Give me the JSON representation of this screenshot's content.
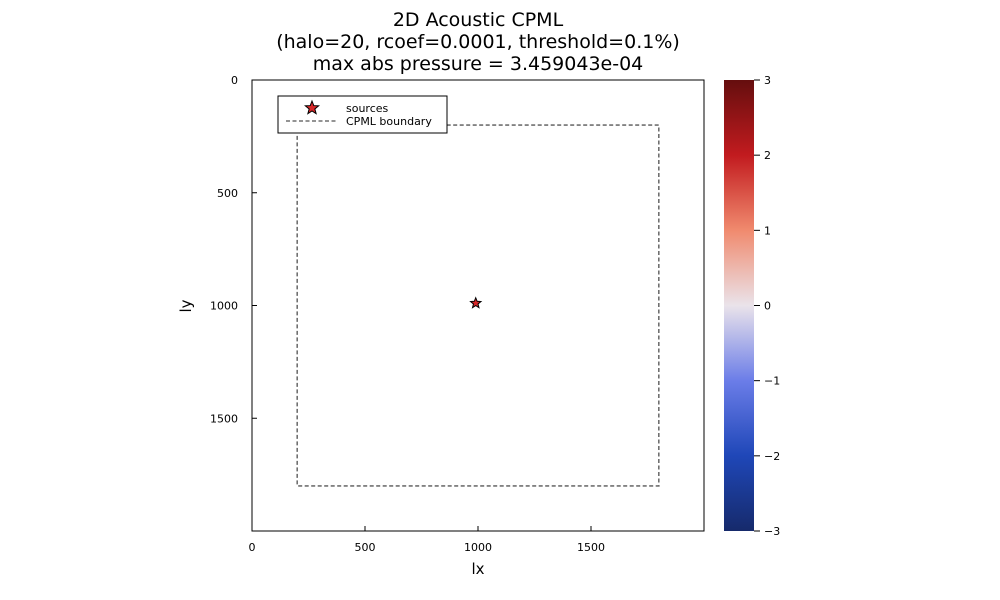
{
  "chart_data": {
    "type": "heatmap",
    "title_lines": [
      "2D Acoustic CPML",
      "(halo=20, rcoef=0.0001, threshold=0.1%)",
      "max abs pressure = 3.459043e-04"
    ],
    "xlabel": "lx",
    "ylabel": "ly",
    "xlim": [
      0,
      2000
    ],
    "ylim": [
      0,
      2000
    ],
    "y_inverted": true,
    "xticks": [
      0,
      500,
      1000,
      1500
    ],
    "xtick_labels": [
      "0",
      "500",
      "1000",
      "1500"
    ],
    "yticks": [
      0,
      500,
      1000,
      1500
    ],
    "ytick_labels": [
      "0",
      "500",
      "1000",
      "1500"
    ],
    "field_value": 0,
    "colorbar": {
      "colormap": "balance",
      "range": [
        -3,
        3
      ],
      "ticks": [
        3,
        2,
        1,
        0,
        -1,
        -2,
        -3
      ],
      "tick_labels": [
        "3",
        "2",
        "1",
        "0",
        "−1",
        "−2",
        "−3"
      ],
      "colors": [
        "#162a6b",
        "#1f47b8",
        "#6b7de8",
        "#eae3ea",
        "#f08a6e",
        "#c21b1f",
        "#650e0e"
      ]
    },
    "grid": false,
    "legend": {
      "placement": "top-left",
      "entries": [
        {
          "label": "sources",
          "marker": "star",
          "color": "#d62728"
        },
        {
          "label": "CPML boundary",
          "style": "dashed",
          "color": "#707070"
        }
      ]
    },
    "sources": [
      {
        "x": 990,
        "y": 990
      }
    ],
    "cpml_boundary": {
      "x": [
        200,
        1800
      ],
      "y": [
        200,
        1800
      ]
    }
  }
}
